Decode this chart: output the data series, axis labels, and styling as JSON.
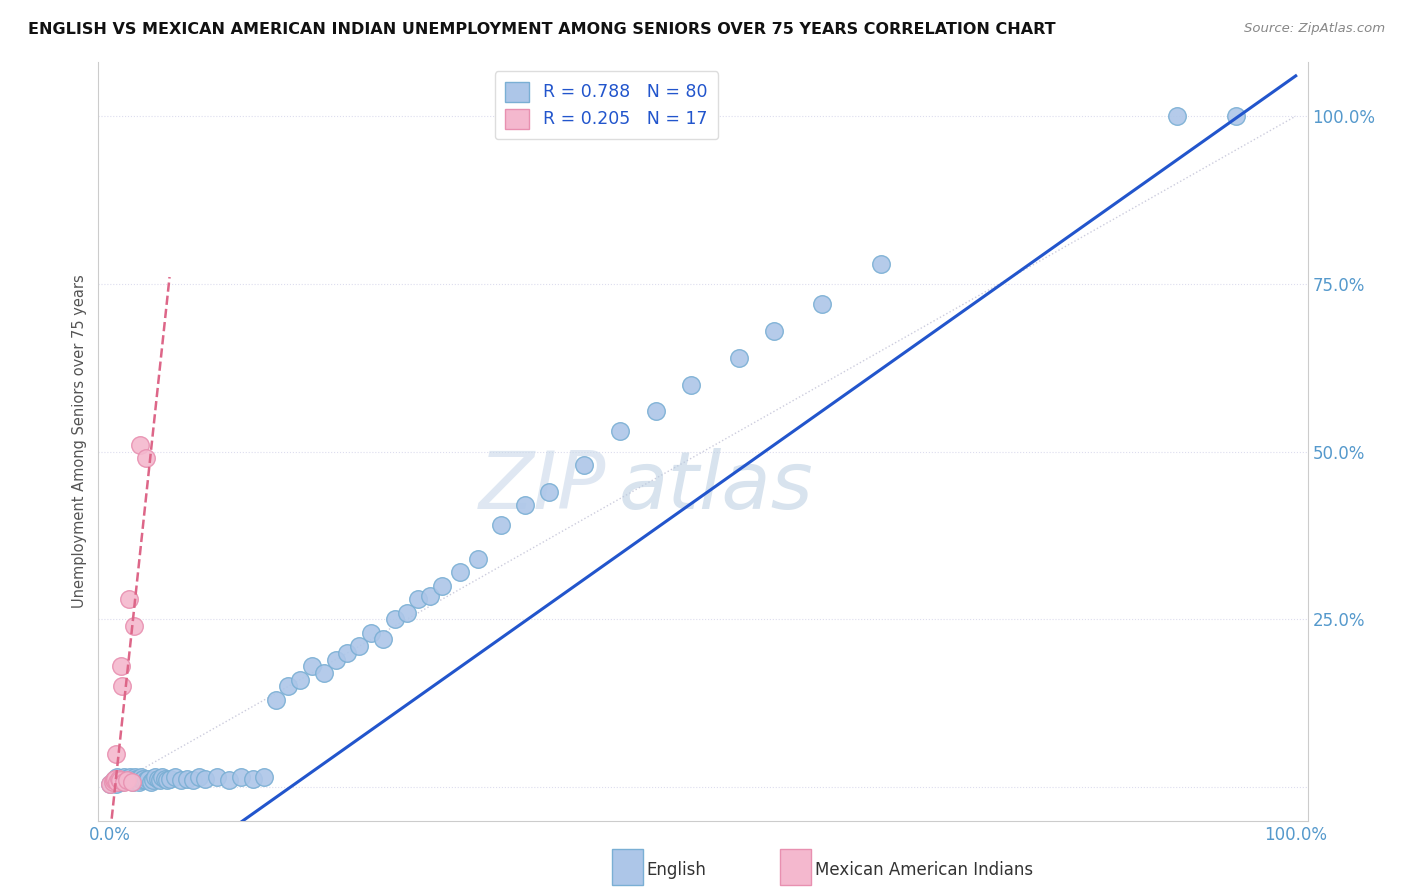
{
  "title": "ENGLISH VS MEXICAN AMERICAN INDIAN UNEMPLOYMENT AMONG SENIORS OVER 75 YEARS CORRELATION CHART",
  "source": "Source: ZipAtlas.com",
  "ylabel": "Unemployment Among Seniors over 75 years",
  "watermark_zip": "ZIP",
  "watermark_atlas": "atlas",
  "legend_line1": "R = 0.788   N = 80",
  "legend_line2": "R = 0.205   N = 17",
  "english_color": "#adc6e8",
  "english_edge_color": "#7aafd4",
  "mexican_color": "#f4b8ce",
  "mexican_edge_color": "#e890b0",
  "english_line_color": "#2255cc",
  "mexican_line_color": "#dd6688",
  "diagonal_color": "#ccccdd",
  "grid_color": "#ddddee",
  "background_color": "#ffffff",
  "tick_color": "#5599cc",
  "english_x": [
    0.0,
    0.002,
    0.003,
    0.004,
    0.005,
    0.006,
    0.007,
    0.008,
    0.009,
    0.01,
    0.011,
    0.012,
    0.013,
    0.014,
    0.015,
    0.016,
    0.017,
    0.018,
    0.019,
    0.02,
    0.021,
    0.022,
    0.023,
    0.024,
    0.025,
    0.026,
    0.027,
    0.028,
    0.03,
    0.032,
    0.034,
    0.036,
    0.038,
    0.04,
    0.042,
    0.044,
    0.046,
    0.048,
    0.05,
    0.055,
    0.06,
    0.065,
    0.07,
    0.075,
    0.08,
    0.09,
    0.1,
    0.11,
    0.12,
    0.13,
    0.14,
    0.15,
    0.16,
    0.17,
    0.18,
    0.19,
    0.2,
    0.21,
    0.22,
    0.23,
    0.24,
    0.25,
    0.26,
    0.27,
    0.28,
    0.295,
    0.31,
    0.33,
    0.35,
    0.37,
    0.4,
    0.43,
    0.46,
    0.49,
    0.53,
    0.56,
    0.6,
    0.65,
    0.9,
    0.95
  ],
  "english_y": [
    0.005,
    0.008,
    0.01,
    0.012,
    0.005,
    0.015,
    0.007,
    0.01,
    0.012,
    0.008,
    0.01,
    0.015,
    0.01,
    0.012,
    0.014,
    0.01,
    0.015,
    0.012,
    0.008,
    0.01,
    0.015,
    0.012,
    0.01,
    0.008,
    0.012,
    0.015,
    0.01,
    0.012,
    0.01,
    0.012,
    0.008,
    0.01,
    0.015,
    0.012,
    0.01,
    0.015,
    0.012,
    0.01,
    0.012,
    0.015,
    0.01,
    0.012,
    0.01,
    0.015,
    0.012,
    0.015,
    0.01,
    0.015,
    0.012,
    0.015,
    0.13,
    0.15,
    0.16,
    0.18,
    0.17,
    0.19,
    0.2,
    0.21,
    0.23,
    0.22,
    0.25,
    0.26,
    0.28,
    0.285,
    0.3,
    0.32,
    0.34,
    0.39,
    0.42,
    0.44,
    0.48,
    0.53,
    0.56,
    0.6,
    0.64,
    0.68,
    0.72,
    0.78,
    1.0,
    1.0
  ],
  "mexican_x": [
    0.0,
    0.002,
    0.003,
    0.004,
    0.005,
    0.006,
    0.007,
    0.008,
    0.009,
    0.01,
    0.012,
    0.014,
    0.016,
    0.018,
    0.02,
    0.025,
    0.03
  ],
  "mexican_y": [
    0.005,
    0.008,
    0.01,
    0.012,
    0.05,
    0.008,
    0.012,
    0.01,
    0.18,
    0.15,
    0.008,
    0.01,
    0.28,
    0.008,
    0.24,
    0.51,
    0.49
  ],
  "xtick_values": [
    0.0,
    0.25,
    0.5,
    0.75,
    1.0
  ],
  "xtick_labels": [
    "0.0%",
    "",
    "",
    "",
    "100.0%"
  ],
  "ytick_values": [
    0.0,
    0.25,
    0.5,
    0.75,
    1.0
  ],
  "ytick_labels_right": [
    "",
    "25.0%",
    "50.0%",
    "75.0%",
    "100.0%"
  ]
}
